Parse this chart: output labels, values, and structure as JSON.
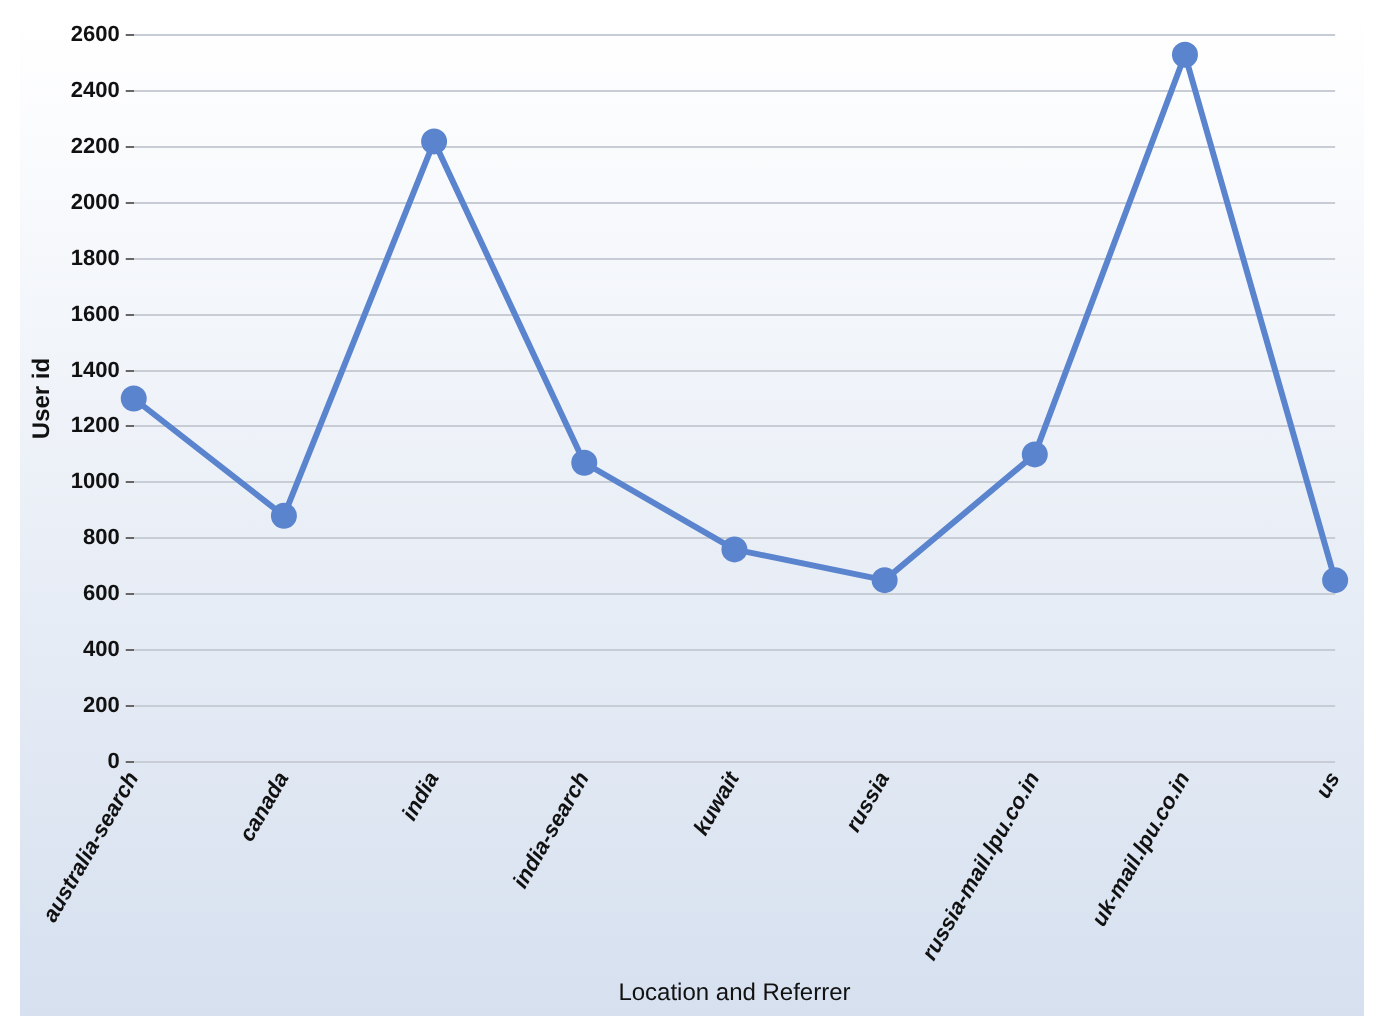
{
  "chart_data": {
    "type": "line",
    "xlabel": "Location and Referrer",
    "ylabel": "User id",
    "categories": [
      "australia-search",
      "canada",
      "india",
      "india-search",
      "kuwait",
      "russia",
      "russia-mail.lpu.co.in",
      "uk-mail.lpu.co.in",
      "us"
    ],
    "series": [
      {
        "color": "#5b84cf",
        "values": [
          1300,
          880,
          2220,
          1070,
          760,
          650,
          1100,
          2530,
          650
        ]
      }
    ],
    "ylim": [
      0,
      2600
    ],
    "yticks": [
      0,
      200,
      400,
      600,
      800,
      1000,
      1200,
      1400,
      1600,
      1800,
      2000,
      2200,
      2400,
      2600
    ],
    "grid": "y",
    "legend": false,
    "marker": "circle",
    "line_style": "solid"
  }
}
